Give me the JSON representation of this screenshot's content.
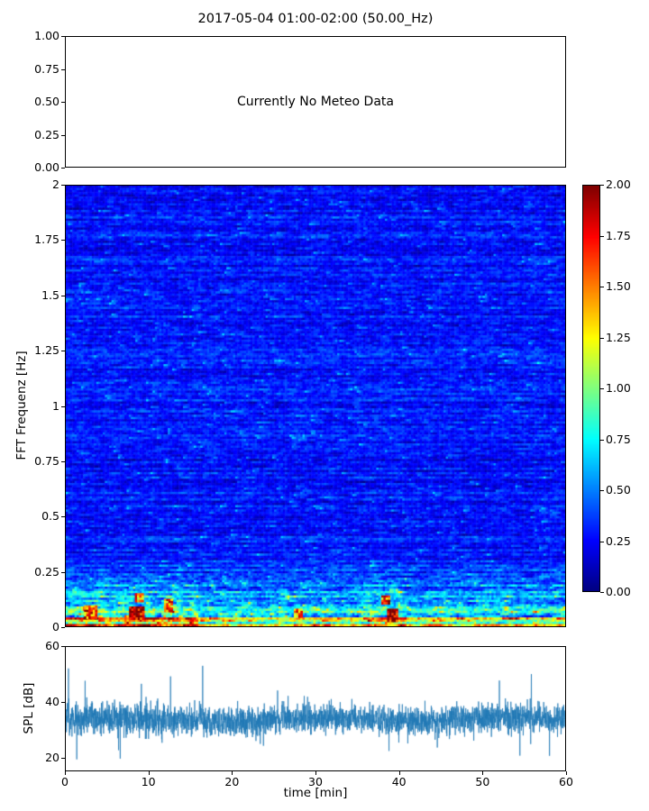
{
  "figure": {
    "title": "2017-05-04 01:00-02:00 (50.00_Hz)",
    "background_color": "#ffffff",
    "text_color": "#000000"
  },
  "meteo_panel": {
    "message": "Currently No Meteo Data",
    "ylim": [
      0.0,
      1.0
    ],
    "ytick_values": [
      1.0,
      0.75,
      0.5,
      0.25,
      0.0
    ],
    "ytick_labels": [
      "1.00",
      "0.75",
      "0.50",
      "0.25",
      "0.00"
    ]
  },
  "chart_data": [
    {
      "type": "heatmap",
      "name": "fft-spectrogram",
      "ylabel": "FFT Frequenz [Hz]",
      "xlim": [
        0,
        60
      ],
      "ylim": [
        0,
        2
      ],
      "ytick_values": [
        2,
        1.75,
        1.5,
        1.25,
        1,
        0.75,
        0.5,
        0.25,
        0
      ],
      "ytick_labels": [
        "2",
        "1.75",
        "1.5",
        "1.25",
        "1",
        "0.75",
        "0.5",
        "0.25",
        "0"
      ],
      "colormap": "jet",
      "vmin": 0,
      "vmax": 2,
      "colorbar_tick_labels": [
        "2.00",
        "1.75",
        "1.50",
        "1.25",
        "1.00",
        "0.75",
        "0.50",
        "0.25",
        "0.00"
      ],
      "pattern": {
        "description": "Dense horizontal noise streaks. Values mostly 0.1-0.5 (blue shades) between 0.3 and 2 Hz with scattered cyan/green streaks; spectral energy rises below 0.3 Hz reaching 0.8-2.0 (green/yellow/orange/red), strongest during minutes 0-16 and 36-41 below 0.2 Hz.",
        "seed": 1337,
        "cols": 230,
        "rows": 200,
        "base_value": 0.27,
        "row_amp_min": 0.72,
        "row_amp_range": 0.56,
        "noise": 0.21,
        "blob_probability": 0.045,
        "blob_extra": 0.6,
        "low_freq_cutoff_hz": 0.3,
        "low_freq_gain": 0.5,
        "bottom_band_hz": 0.035,
        "bottom_band_extra": 0.3,
        "event_windows_min": [
          [
            0,
            16
          ],
          [
            36,
            41
          ]
        ],
        "event_boost": 1.35,
        "hot_spots": [
          {
            "x_min": 2.2,
            "freq_hz": 0.07,
            "w_min": 1.5,
            "h_hz": 0.05,
            "value": 1.6
          },
          {
            "x_min": 7.6,
            "freq_hz": 0.06,
            "w_min": 1.6,
            "h_hz": 0.06,
            "value": 1.95
          },
          {
            "x_min": 8.3,
            "freq_hz": 0.13,
            "w_min": 1.0,
            "h_hz": 0.04,
            "value": 1.5
          },
          {
            "x_min": 11.8,
            "freq_hz": 0.1,
            "w_min": 0.9,
            "h_hz": 0.05,
            "value": 1.55
          },
          {
            "x_min": 27.4,
            "freq_hz": 0.06,
            "w_min": 0.9,
            "h_hz": 0.04,
            "value": 1.5
          },
          {
            "x_min": 37.9,
            "freq_hz": 0.12,
            "w_min": 0.8,
            "h_hz": 0.04,
            "value": 1.6
          },
          {
            "x_min": 38.6,
            "freq_hz": 0.05,
            "w_min": 1.1,
            "h_hz": 0.06,
            "value": 1.95
          }
        ]
      }
    },
    {
      "type": "line",
      "name": "spl-timeseries",
      "xlabel": "time [min]",
      "ylabel": "SPL [dB]",
      "xlim": [
        0,
        60
      ],
      "ylim": [
        15,
        60
      ],
      "xtick_values": [
        0,
        10,
        20,
        30,
        40,
        50,
        60
      ],
      "xtick_labels": [
        "0",
        "10",
        "20",
        "30",
        "40",
        "50",
        "60"
      ],
      "ytick_values": [
        60,
        40,
        20
      ],
      "ytick_labels": [
        "60",
        "40",
        "20"
      ],
      "line_color": "#1f77b4",
      "series": {
        "name": "SPL",
        "seed": 4242,
        "n_points": 3000,
        "mean_db": 33.5,
        "std_db": 2.6,
        "spike_up_probability": 0.005,
        "spike_up_max_db": 57,
        "spike_down_probability": 0.005,
        "spike_down_min_db": 19,
        "description": "Noisy band around 30-38 dB across the hour with frequent hair-line spikes up to ~50-57 dB (densest in the first 12 minutes and near minute 38) and dips to ~19-22 dB."
      }
    }
  ]
}
